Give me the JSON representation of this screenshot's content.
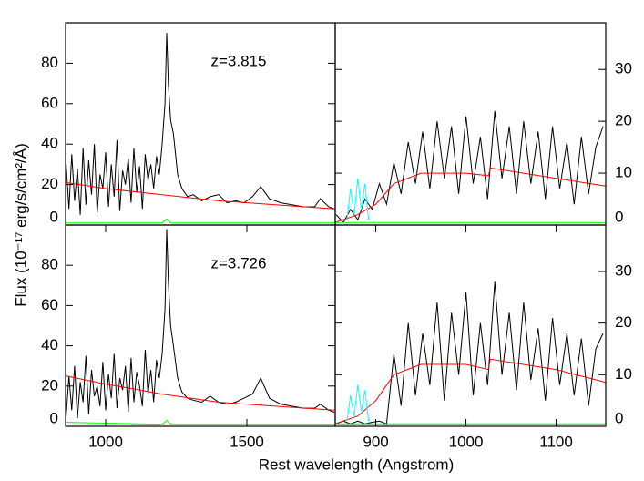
{
  "ylabel": "Flux (10⁻¹⁷ erg/s/cm²/Å)",
  "xlabel": "Rest wavelength (Angstrom)",
  "chart_data": [
    {
      "type": "line",
      "annotation": "z=3.815",
      "xlim": [
        858,
        1813
      ],
      "ylim": [
        0,
        100
      ],
      "yticks": [
        0,
        20,
        40,
        60,
        80
      ],
      "y_axis_side": "left",
      "series": [
        {
          "name": "flux",
          "color": "#000000",
          "x": [
            860,
            870,
            880,
            890,
            900,
            910,
            920,
            930,
            940,
            950,
            960,
            970,
            980,
            990,
            1000,
            1010,
            1020,
            1030,
            1040,
            1050,
            1060,
            1070,
            1080,
            1090,
            1100,
            1110,
            1120,
            1130,
            1140,
            1150,
            1160,
            1170,
            1180,
            1190,
            1200,
            1210,
            1216,
            1222,
            1230,
            1240,
            1255,
            1270,
            1290,
            1310,
            1340,
            1370,
            1400,
            1430,
            1460,
            1490,
            1520,
            1549,
            1580,
            1620,
            1660,
            1700,
            1740,
            1760,
            1790,
            1810
          ],
          "values": [
            30,
            8,
            35,
            12,
            28,
            5,
            38,
            10,
            32,
            15,
            40,
            6,
            25,
            18,
            36,
            9,
            30,
            14,
            42,
            7,
            27,
            20,
            33,
            11,
            38,
            16,
            29,
            8,
            35,
            22,
            30,
            18,
            34,
            25,
            40,
            60,
            95,
            70,
            52,
            45,
            25,
            18,
            14,
            15,
            12,
            14,
            15,
            11,
            12,
            11,
            14,
            19,
            13,
            11,
            10,
            9,
            9,
            13,
            9,
            8
          ]
        },
        {
          "name": "continuum",
          "color": "#ff0000",
          "x": [
            860,
            1000,
            1200,
            1400,
            1600,
            1810
          ],
          "values": [
            21,
            18,
            15,
            12,
            10,
            8
          ]
        },
        {
          "name": "error",
          "color": "#00ff00",
          "x": [
            860,
            1200,
            1216,
            1230,
            1810
          ],
          "values": [
            1,
            1,
            3,
            1,
            1
          ]
        }
      ]
    },
    {
      "type": "line",
      "xlim": [
        855,
        1155
      ],
      "ylim": [
        0,
        39
      ],
      "yticks": [
        0,
        10,
        20,
        30
      ],
      "y_axis_side": "right",
      "series": [
        {
          "name": "flux",
          "color": "#000000",
          "x": [
            856,
            864,
            872,
            880,
            888,
            896,
            904,
            912,
            920,
            928,
            936,
            944,
            952,
            960,
            968,
            976,
            984,
            992,
            1000,
            1008,
            1016,
            1024,
            1032,
            1040,
            1048,
            1056,
            1064,
            1072,
            1080,
            1088,
            1096,
            1104,
            1112,
            1120,
            1128,
            1136,
            1144,
            1152
          ],
          "values": [
            2,
            0.5,
            3,
            1,
            5,
            3,
            8,
            4,
            12,
            6,
            16,
            8,
            18,
            7,
            20,
            9,
            19,
            6,
            21,
            8,
            17,
            5,
            22,
            9,
            19,
            6,
            20,
            8,
            18,
            5,
            19,
            7,
            16,
            4,
            17,
            6,
            15,
            19
          ]
        },
        {
          "name": "continuum",
          "color": "#ff0000",
          "x": [
            855,
            880,
            900,
            920,
            950,
            1000,
            1025,
            1027,
            1100,
            1155
          ],
          "values": [
            0.5,
            2,
            4,
            8,
            10,
            10,
            9.5,
            11,
            9,
            7.5
          ]
        },
        {
          "name": "masked",
          "color": "#00ffff",
          "x": [
            868,
            872,
            876,
            880,
            884,
            888,
            892
          ],
          "values": [
            1,
            7,
            2,
            9,
            3,
            8,
            1
          ]
        },
        {
          "name": "error",
          "color": "#00ff00",
          "x": [
            855,
            1155
          ],
          "values": [
            0.5,
            0.5
          ]
        }
      ]
    },
    {
      "type": "line",
      "annotation": "z=3.726",
      "xlim": [
        858,
        1813
      ],
      "ylim": [
        0,
        100
      ],
      "yticks": [
        0,
        20,
        40,
        60,
        80
      ],
      "xticks": [
        1000,
        1500
      ],
      "y_axis_side": "left",
      "series": [
        {
          "name": "flux",
          "color": "#000000",
          "x": [
            860,
            870,
            880,
            890,
            900,
            910,
            920,
            930,
            940,
            950,
            960,
            970,
            980,
            990,
            1000,
            1010,
            1020,
            1030,
            1040,
            1050,
            1060,
            1070,
            1080,
            1090,
            1100,
            1110,
            1120,
            1130,
            1140,
            1150,
            1160,
            1170,
            1180,
            1190,
            1200,
            1210,
            1216,
            1222,
            1230,
            1240,
            1255,
            1270,
            1290,
            1310,
            1340,
            1370,
            1400,
            1430,
            1460,
            1490,
            1520,
            1549,
            1580,
            1620,
            1660,
            1700,
            1740,
            1760,
            1790,
            1810
          ],
          "values": [
            5,
            25,
            8,
            30,
            4,
            22,
            12,
            35,
            6,
            28,
            15,
            20,
            10,
            32,
            8,
            26,
            14,
            36,
            9,
            24,
            18,
            30,
            7,
            34,
            12,
            27,
            20,
            10,
            38,
            16,
            28,
            12,
            33,
            24,
            36,
            58,
            98,
            72,
            50,
            40,
            24,
            17,
            14,
            13,
            12,
            15,
            12,
            11,
            12,
            14,
            16,
            24,
            14,
            11,
            10,
            9,
            9,
            11,
            8,
            7
          ]
        },
        {
          "name": "continuum",
          "color": "#ff0000",
          "x": [
            860,
            1000,
            1200,
            1400,
            1600,
            1810
          ],
          "values": [
            25,
            21,
            16,
            12,
            10,
            8
          ]
        },
        {
          "name": "error",
          "color": "#00ff00",
          "x": [
            860,
            1200,
            1216,
            1230,
            1810
          ],
          "values": [
            2,
            1,
            3,
            1,
            1
          ]
        }
      ]
    },
    {
      "type": "line",
      "xlim": [
        855,
        1155
      ],
      "ylim": [
        0,
        39
      ],
      "yticks": [
        0,
        10,
        20,
        30
      ],
      "xticks": [
        900,
        1000,
        1100
      ],
      "y_axis_side": "right",
      "series": [
        {
          "name": "flux",
          "color": "#000000",
          "x": [
            856,
            864,
            872,
            880,
            888,
            896,
            904,
            912,
            920,
            928,
            936,
            944,
            952,
            960,
            968,
            976,
            984,
            992,
            1000,
            1008,
            1016,
            1024,
            1032,
            1040,
            1048,
            1056,
            1064,
            1072,
            1080,
            1088,
            1096,
            1104,
            1112,
            1120,
            1128,
            1136,
            1144,
            1152
          ],
          "values": [
            0.5,
            1,
            0.5,
            1,
            0.5,
            0.8,
            1,
            0.5,
            14,
            4,
            20,
            6,
            18,
            8,
            24,
            5,
            22,
            10,
            26,
            6,
            20,
            8,
            28,
            10,
            22,
            7,
            24,
            9,
            19,
            5,
            21,
            8,
            18,
            6,
            17,
            4,
            15,
            18
          ]
        },
        {
          "name": "continuum",
          "color": "#ff0000",
          "x": [
            855,
            880,
            900,
            920,
            950,
            1000,
            1025,
            1027,
            1100,
            1155
          ],
          "values": [
            0.5,
            2,
            5,
            10,
            12,
            12,
            11,
            13,
            11,
            8.5
          ]
        },
        {
          "name": "masked",
          "color": "#00ffff",
          "x": [
            868,
            872,
            876,
            880,
            884,
            888,
            892
          ],
          "values": [
            1,
            6,
            2,
            8,
            3,
            7,
            1
          ]
        },
        {
          "name": "error",
          "color": "#00ff00",
          "x": [
            855,
            1155
          ],
          "values": [
            0.5,
            0.5
          ]
        }
      ]
    }
  ]
}
